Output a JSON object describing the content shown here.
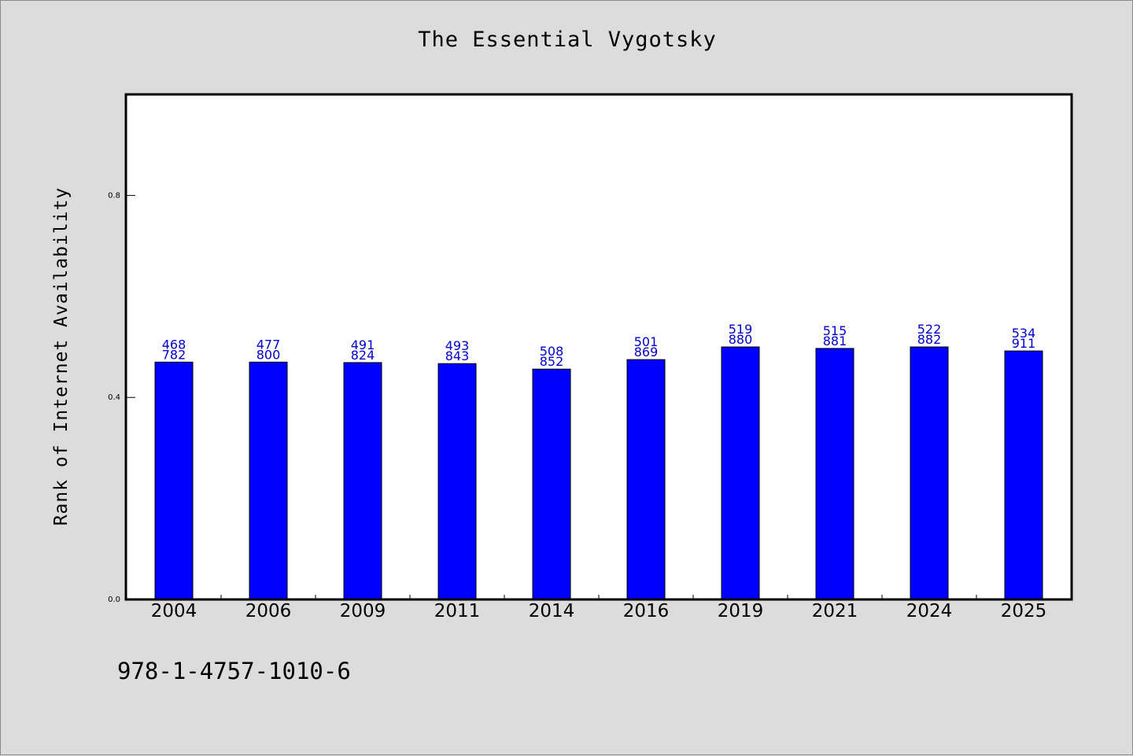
{
  "chart_data": {
    "type": "bar",
    "title": "The Essential Vygotsky",
    "ylabel": "Rank of Internet Availability",
    "xlabel": "",
    "categories": [
      "2004",
      "2006",
      "2009",
      "2011",
      "2014",
      "2016",
      "2019",
      "2021",
      "2024",
      "2025"
    ],
    "values": [
      0.47,
      0.47,
      0.469,
      0.467,
      0.456,
      0.475,
      0.5,
      0.497,
      0.5,
      0.492
    ],
    "label_top": [
      "468",
      "477",
      "491",
      "493",
      "508",
      "501",
      "519",
      "515",
      "522",
      "534"
    ],
    "label_bottom": [
      "782",
      "800",
      "824",
      "843",
      "852",
      "869",
      "880",
      "881",
      "882",
      "911"
    ],
    "ylim": [
      0,
      1.0
    ],
    "yticks": [
      0.0,
      0.4,
      0.8
    ],
    "ytick_labels": [
      "0.0",
      "0.4",
      "0.8"
    ],
    "bar_color": "#0000ff",
    "label_color": "#0000cc",
    "grid": false,
    "legend": "none"
  },
  "footer": {
    "isbn": "978-1-4757-1010-6"
  },
  "colors": {
    "background": "#dcdcdc",
    "plot_background": "#ffffff"
  }
}
